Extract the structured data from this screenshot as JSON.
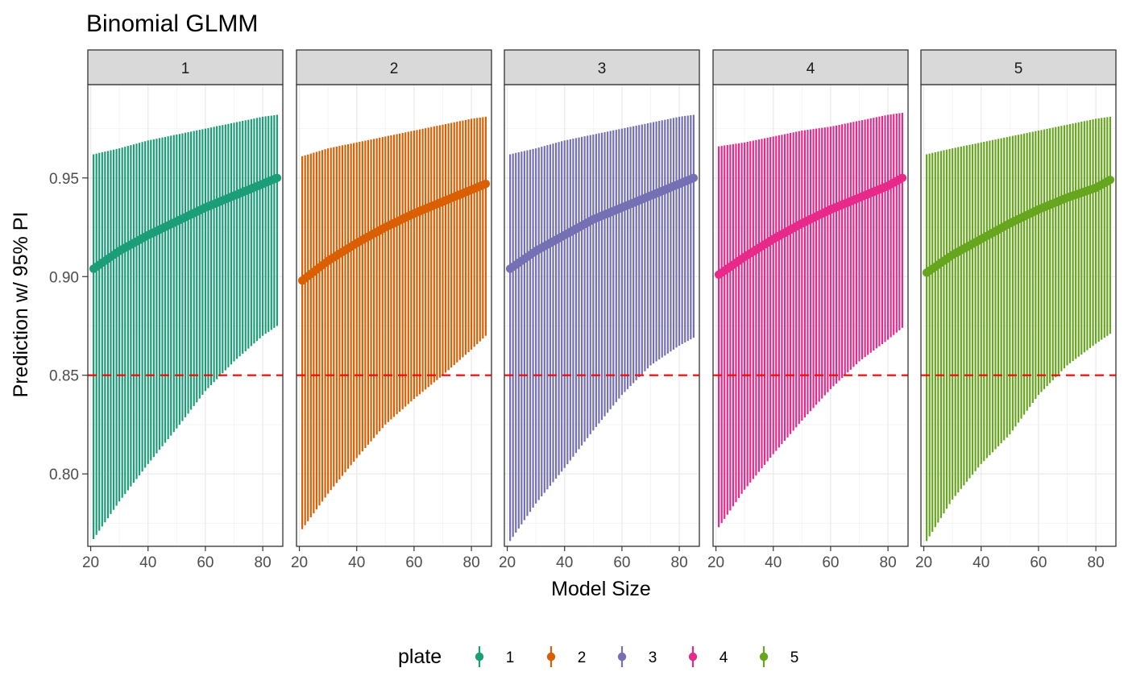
{
  "chart_data": {
    "type": "line",
    "title": "Binomial GLMM",
    "xlabel": "Model Size",
    "ylabel": "Prediction w/ 95% PI",
    "facet_variable": "plate",
    "facets": [
      "1",
      "2",
      "3",
      "4",
      "5"
    ],
    "xlim": [
      19,
      87
    ],
    "ylim": [
      0.7633,
      0.9973
    ],
    "x_ticks": [
      20,
      40,
      60,
      80
    ],
    "x_tick_labels": [
      "20",
      "40",
      "60",
      "80"
    ],
    "y_ticks": [
      0.8,
      0.85,
      0.9,
      0.95
    ],
    "y_tick_labels": [
      "0.80",
      "0.85",
      "0.90",
      "0.95"
    ],
    "reference_line": {
      "y": 0.85,
      "color": "#ff0000",
      "style": "dashed"
    },
    "x_range": [
      21,
      85
    ],
    "series": [
      {
        "name": "1",
        "color": "#1b9e77",
        "x": [
          21,
          30,
          40,
          50,
          60,
          70,
          80,
          85
        ],
        "prediction": [
          0.904,
          0.913,
          0.921,
          0.928,
          0.935,
          0.941,
          0.947,
          0.95
        ],
        "lower": [
          0.767,
          0.786,
          0.805,
          0.823,
          0.842,
          0.857,
          0.87,
          0.875
        ],
        "upper": [
          0.962,
          0.965,
          0.969,
          0.972,
          0.975,
          0.978,
          0.981,
          0.982
        ]
      },
      {
        "name": "2",
        "color": "#d95f02",
        "x": [
          21,
          30,
          40,
          50,
          60,
          70,
          80,
          85
        ],
        "prediction": [
          0.898,
          0.908,
          0.917,
          0.925,
          0.932,
          0.938,
          0.944,
          0.947
        ],
        "lower": [
          0.772,
          0.79,
          0.808,
          0.825,
          0.838,
          0.85,
          0.863,
          0.87
        ],
        "upper": [
          0.961,
          0.965,
          0.968,
          0.971,
          0.974,
          0.977,
          0.98,
          0.981
        ]
      },
      {
        "name": "3",
        "color": "#7570b3",
        "x": [
          21,
          30,
          40,
          50,
          60,
          70,
          80,
          85
        ],
        "prediction": [
          0.904,
          0.913,
          0.921,
          0.929,
          0.935,
          0.941,
          0.947,
          0.95
        ],
        "lower": [
          0.766,
          0.785,
          0.803,
          0.822,
          0.84,
          0.855,
          0.865,
          0.869
        ],
        "upper": [
          0.962,
          0.965,
          0.969,
          0.972,
          0.975,
          0.978,
          0.981,
          0.982
        ]
      },
      {
        "name": "4",
        "color": "#e7298a",
        "x": [
          21,
          30,
          40,
          50,
          60,
          70,
          80,
          85
        ],
        "prediction": [
          0.901,
          0.91,
          0.919,
          0.927,
          0.934,
          0.94,
          0.946,
          0.95
        ],
        "lower": [
          0.773,
          0.792,
          0.81,
          0.827,
          0.843,
          0.857,
          0.868,
          0.874
        ],
        "upper": [
          0.966,
          0.968,
          0.971,
          0.974,
          0.976,
          0.979,
          0.982,
          0.983
        ]
      },
      {
        "name": "5",
        "color": "#66a61e",
        "x": [
          21,
          30,
          40,
          50,
          60,
          70,
          80,
          85
        ],
        "prediction": [
          0.902,
          0.911,
          0.919,
          0.927,
          0.934,
          0.94,
          0.945,
          0.949
        ],
        "lower": [
          0.766,
          0.787,
          0.805,
          0.82,
          0.84,
          0.855,
          0.866,
          0.871
        ],
        "upper": [
          0.962,
          0.965,
          0.968,
          0.971,
          0.974,
          0.977,
          0.98,
          0.981
        ]
      }
    ],
    "legend": {
      "title": "plate",
      "position": "bottom",
      "entries": [
        "1",
        "2",
        "3",
        "4",
        "5"
      ]
    }
  }
}
